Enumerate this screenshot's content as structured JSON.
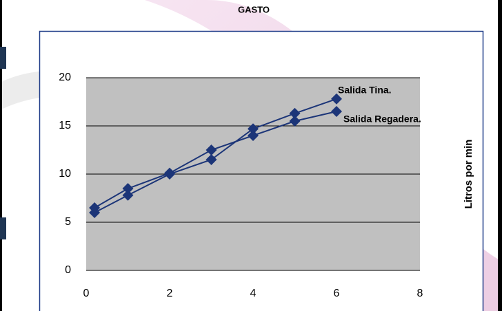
{
  "chart_data": {
    "type": "line",
    "title": "GASTO",
    "y_label": "Litros por min",
    "xlim": [
      0,
      8
    ],
    "xticks": [
      0,
      2,
      4,
      6,
      8
    ],
    "ylim": [
      0,
      20
    ],
    "yticks": [
      0,
      5,
      10,
      15,
      20
    ],
    "grid": true,
    "series": [
      {
        "name": "Salida Tina.",
        "color": "#1c3578",
        "x": [
          0.2,
          1,
          2,
          3,
          4,
          5,
          6
        ],
        "values": [
          6.0,
          7.8,
          10.0,
          11.5,
          14.7,
          16.3,
          17.8
        ]
      },
      {
        "name": "Salida Regadera.",
        "color": "#1c3578",
        "x": [
          0.2,
          1,
          2,
          3,
          4,
          5,
          6
        ],
        "values": [
          6.5,
          8.5,
          10.1,
          12.5,
          14.0,
          15.5,
          16.5
        ]
      }
    ]
  }
}
